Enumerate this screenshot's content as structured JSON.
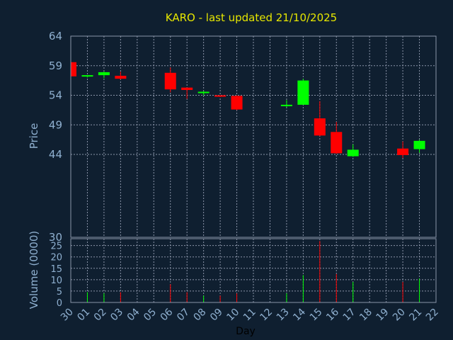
{
  "chart_data": [
    {
      "type": "candlestick",
      "title": "KARO - last updated 21/10/2025",
      "ylabel": "Price",
      "ylim": [
        30,
        64
      ],
      "yticks": [
        64,
        59,
        54,
        49,
        44,
        30
      ],
      "grid": true,
      "categories": [
        "30",
        "01",
        "02",
        "03",
        "04",
        "05",
        "06",
        "07",
        "08",
        "09",
        "10",
        "11",
        "12",
        "13",
        "14",
        "15",
        "16",
        "17",
        "18",
        "19",
        "20",
        "21",
        "22"
      ],
      "colors": {
        "up": "#00ff00",
        "down": "#ff0000",
        "background": "#0f1f30",
        "plot": "#0f1f30",
        "grid": "#8a94a8",
        "title": "#e6e600",
        "text": "#8fb0d0"
      },
      "candles": [
        {
          "day": "30",
          "open": 59.6,
          "high": 59.6,
          "low": 57.2,
          "close": 57.2
        },
        {
          "day": "01",
          "open": 57.2,
          "high": 57.4,
          "low": 57.0,
          "close": 57.4
        },
        {
          "day": "02",
          "open": 57.4,
          "high": 58.0,
          "low": 56.9,
          "close": 57.9
        },
        {
          "day": "03",
          "open": 57.3,
          "high": 58.0,
          "low": 56.7,
          "close": 56.8
        },
        {
          "day": "06",
          "open": 57.8,
          "high": 58.7,
          "low": 54.5,
          "close": 55.0
        },
        {
          "day": "07",
          "open": 55.3,
          "high": 55.3,
          "low": 53.4,
          "close": 54.9
        },
        {
          "day": "08",
          "open": 54.4,
          "high": 54.7,
          "low": 54.0,
          "close": 54.6
        },
        {
          "day": "09",
          "open": 54.0,
          "high": 54.0,
          "low": 53.7,
          "close": 53.8
        },
        {
          "day": "10",
          "open": 53.9,
          "high": 54.0,
          "low": 51.5,
          "close": 51.6
        },
        {
          "day": "13",
          "open": 52.2,
          "high": 53.2,
          "low": 52.0,
          "close": 52.4
        },
        {
          "day": "14",
          "open": 52.4,
          "high": 56.8,
          "low": 52.4,
          "close": 56.5
        },
        {
          "day": "15",
          "open": 50.1,
          "high": 53.0,
          "low": 47.1,
          "close": 47.2
        },
        {
          "day": "16",
          "open": 47.8,
          "high": 49.5,
          "low": 44.1,
          "close": 44.2
        },
        {
          "day": "17",
          "open": 43.7,
          "high": 45.7,
          "low": 43.6,
          "close": 44.8
        },
        {
          "day": "20",
          "open": 45.0,
          "high": 46.2,
          "low": 43.4,
          "close": 43.9
        },
        {
          "day": "21",
          "open": 44.9,
          "high": 46.5,
          "low": 44.3,
          "close": 46.3
        }
      ]
    },
    {
      "type": "bar",
      "ylabel": "Volume (0000)",
      "ylim": [
        0,
        28
      ],
      "yticks": [
        0,
        5,
        10,
        15,
        20,
        25
      ],
      "xlabel": "Day",
      "categories": [
        "30",
        "01",
        "02",
        "03",
        "04",
        "05",
        "06",
        "07",
        "08",
        "09",
        "10",
        "11",
        "12",
        "13",
        "14",
        "15",
        "16",
        "17",
        "18",
        "19",
        "20",
        "21",
        "22"
      ],
      "volumes": [
        {
          "day": "01",
          "value": 4.5,
          "direction": "up"
        },
        {
          "day": "02",
          "value": 4.0,
          "direction": "up"
        },
        {
          "day": "03",
          "value": 4.5,
          "direction": "down"
        },
        {
          "day": "06",
          "value": 8.0,
          "direction": "down"
        },
        {
          "day": "07",
          "value": 4.5,
          "direction": "down"
        },
        {
          "day": "08",
          "value": 3.0,
          "direction": "up"
        },
        {
          "day": "09",
          "value": 3.0,
          "direction": "down"
        },
        {
          "day": "10",
          "value": 4.0,
          "direction": "down"
        },
        {
          "day": "13",
          "value": 4.0,
          "direction": "up"
        },
        {
          "day": "14",
          "value": 12.0,
          "direction": "up"
        },
        {
          "day": "15",
          "value": 27.0,
          "direction": "down"
        },
        {
          "day": "16",
          "value": 12.5,
          "direction": "down"
        },
        {
          "day": "17",
          "value": 9.0,
          "direction": "up"
        },
        {
          "day": "20",
          "value": 9.0,
          "direction": "down"
        },
        {
          "day": "21",
          "value": 10.5,
          "direction": "up"
        }
      ]
    }
  ]
}
